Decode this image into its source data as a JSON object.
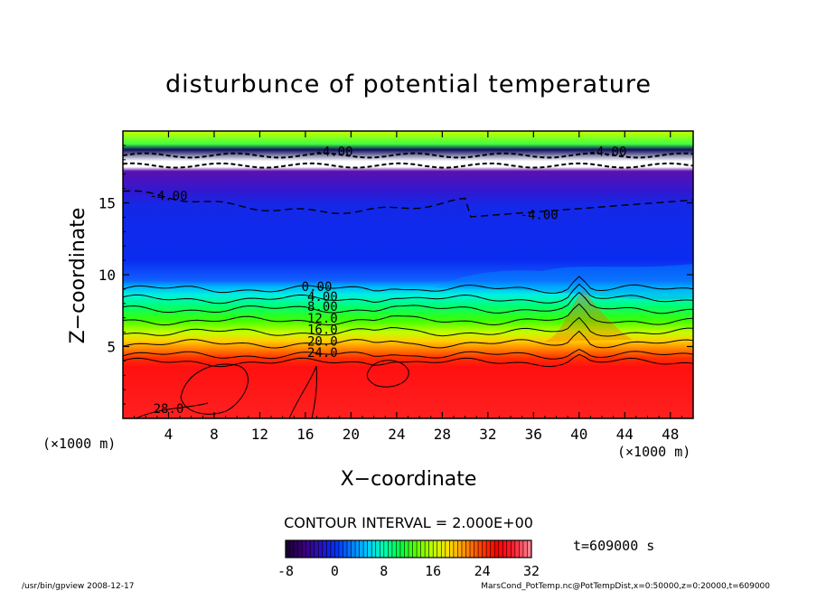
{
  "chart_data": {
    "type": "heatmap",
    "title": "disturbunce of potential temperature",
    "xlabel": "X−coordinate",
    "ylabel": "Z−coordinate",
    "x_unit": "(×1000 m)",
    "y_unit": "(×1000 m)",
    "xlim": [
      0,
      50
    ],
    "ylim": [
      0,
      20
    ],
    "x_ticks": [
      4,
      8,
      12,
      16,
      20,
      24,
      28,
      32,
      36,
      40,
      44,
      48
    ],
    "y_ticks": [
      5,
      10,
      15
    ],
    "contour_interval_text": "CONTOUR INTERVAL = 2.000E+00",
    "time_text": "t=609000 s",
    "colorbar": {
      "min": -8,
      "max": 32,
      "ticks": [
        -8,
        0,
        8,
        16,
        24,
        32
      ],
      "colors": [
        "#1a0033",
        "#3a007a",
        "#2a10c0",
        "#0030ff",
        "#0080ff",
        "#00d0ff",
        "#00ffb0",
        "#00ff40",
        "#60ff00",
        "#c0ff00",
        "#ffe000",
        "#ff9000",
        "#ff4000",
        "#ff0000",
        "#ff2030",
        "#ff8090"
      ]
    },
    "contour_labels": [
      {
        "text": "0.00",
        "x": 17.0,
        "z": 9.0
      },
      {
        "text": "4.00",
        "x": 17.5,
        "z": 8.3
      },
      {
        "text": "8.00",
        "x": 17.5,
        "z": 7.6
      },
      {
        "text": "12.0",
        "x": 17.5,
        "z": 6.8
      },
      {
        "text": "16.0",
        "x": 17.5,
        "z": 6.0
      },
      {
        "text": "20.0",
        "x": 17.5,
        "z": 5.2
      },
      {
        "text": "24.0",
        "x": 17.5,
        "z": 4.4
      },
      {
        "text": "28.0",
        "x": 4.0,
        "z": 0.5
      },
      {
        "text": "-4.00",
        "x": 4.0,
        "z": 15.3
      },
      {
        "text": "-4.00",
        "x": 36.5,
        "z": 14.0
      },
      {
        "text": "-4.00",
        "x": 18.5,
        "z": 18.4
      },
      {
        "text": "-4.00",
        "x": 42.5,
        "z": 18.4
      }
    ],
    "footer_left": "/usr/bin/gpview   2008-12-17",
    "footer_right": "MarsCond_PotTemp.nc@PotTempDist,x=0:50000,z=0:20000,t=609000"
  }
}
